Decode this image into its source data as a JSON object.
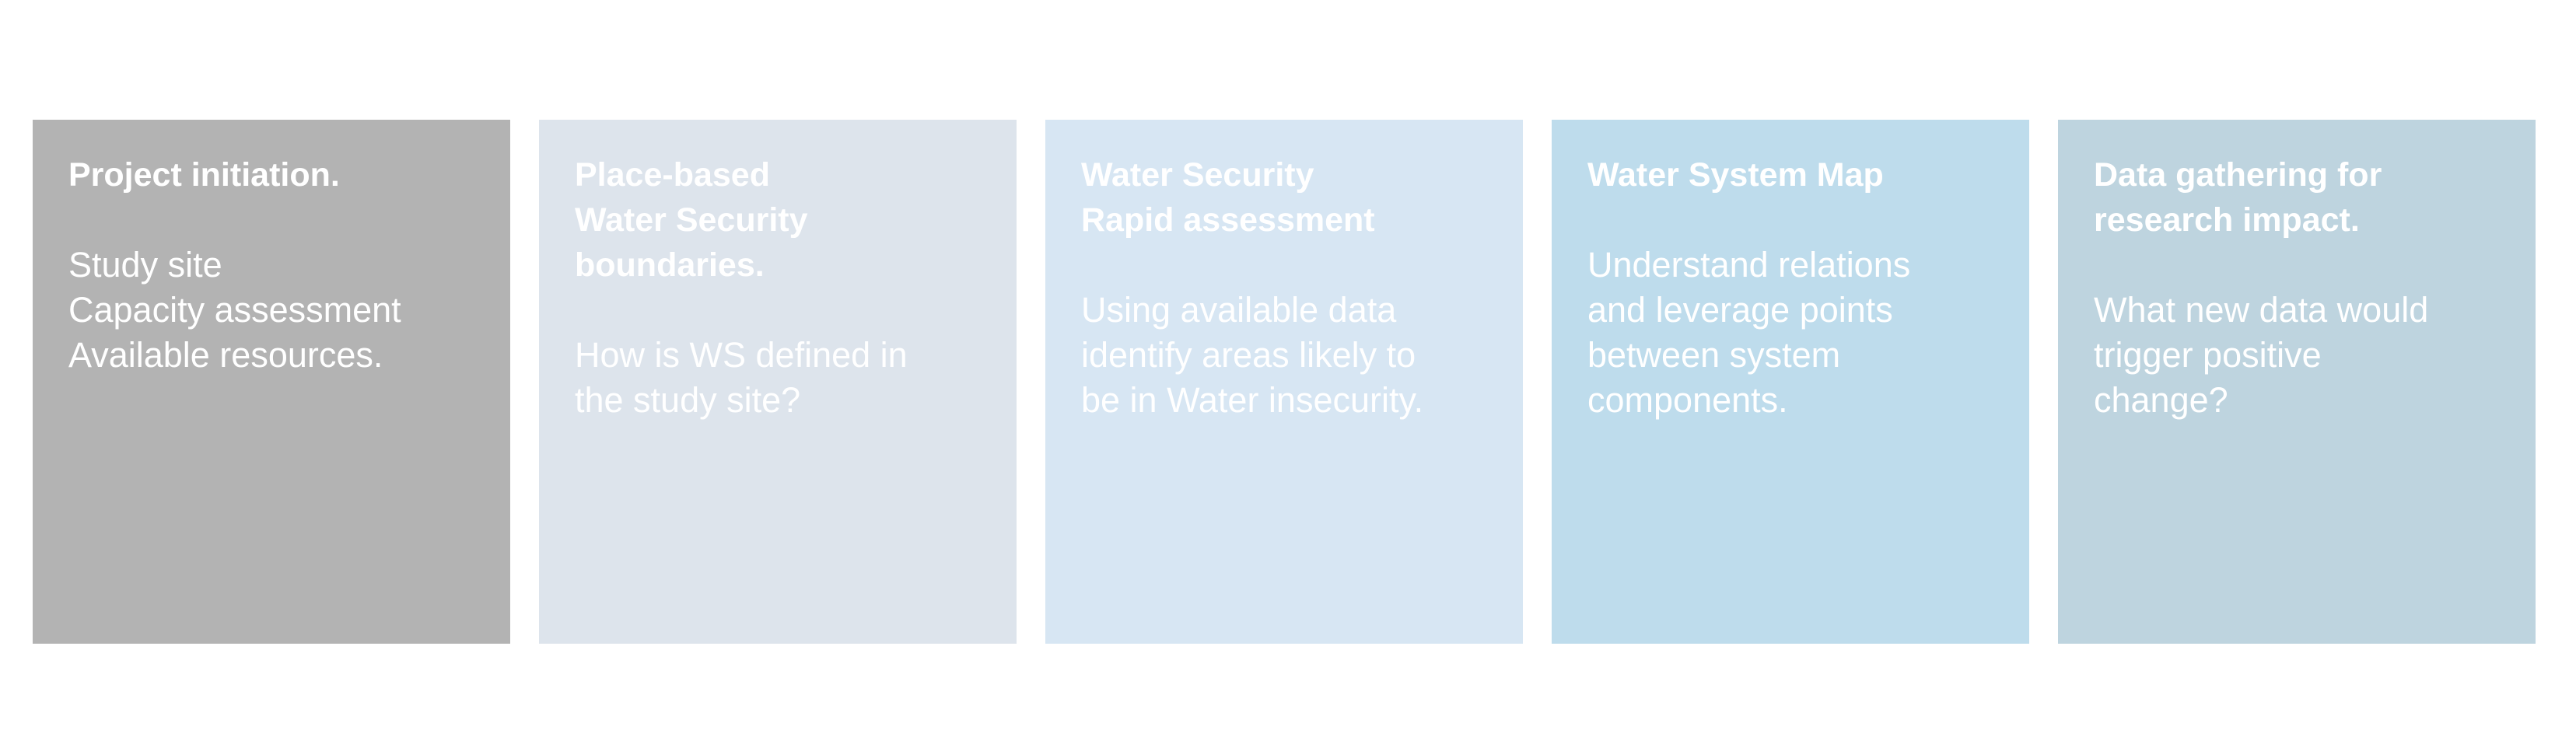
{
  "cards": [
    {
      "title": "Project initiation.",
      "body": "Study site\nCapacity assessment\nAvailable resources.",
      "color": "#b3b3b3"
    },
    {
      "title": "Place-based\nWater Security\nboundaries.",
      "body": "How is WS defined in\nthe study site?",
      "color": "#dde4ec"
    },
    {
      "title": "Water Security\nRapid assessment",
      "body": "Using available data\nidentify areas likely to\nbe in Water insecurity.",
      "color": "#d7e6f3"
    },
    {
      "title": "Water System Map",
      "body": "Understand relations\nand leverage points\nbetween system\ncomponents.",
      "color": "#bedcec"
    },
    {
      "title": "Data gathering for\nresearch impact.",
      "body": "What new data would\ntrigger positive\nchange?",
      "color": "#bed4df"
    }
  ]
}
